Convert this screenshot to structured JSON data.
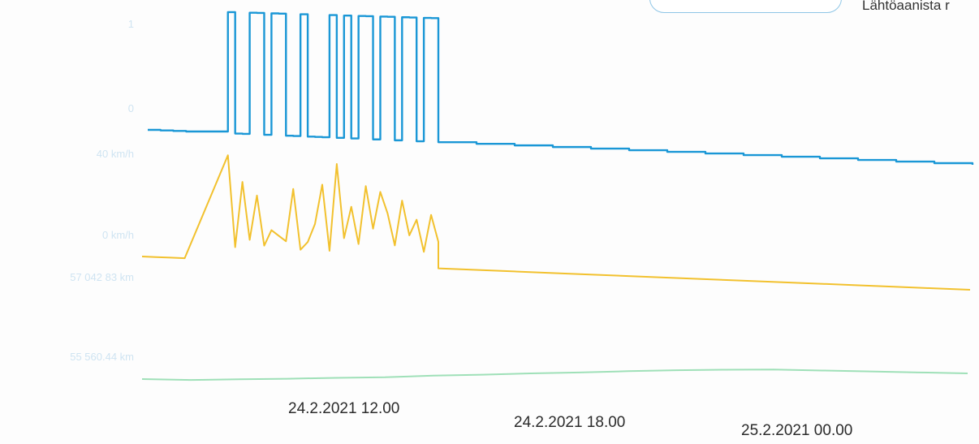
{
  "legend": {
    "text": "Lähtöaanista r"
  },
  "chart_data": {
    "type": "line",
    "x_tick_labels": [
      "24.2.2021 12.00",
      "24.2.2021 18.00",
      "25.2.2021 00.00"
    ],
    "y_labels": {
      "series1_top": "1",
      "series1_bottom": "0",
      "series2_top": "40 km/h",
      "series2_bottom": "0 km/h",
      "series3_top": "57 042 83 km",
      "series3_bottom": "55 560.44 km"
    },
    "series": [
      {
        "key": "binary",
        "color": "#1a97d6",
        "values": [
          0,
          0,
          0,
          0,
          1,
          0,
          0,
          1,
          1,
          0,
          1,
          1,
          0,
          0,
          1,
          0,
          0,
          0,
          1,
          0,
          1,
          0,
          1,
          1,
          0,
          1,
          1,
          0,
          1,
          1,
          0,
          1,
          1,
          0,
          0,
          0,
          0,
          0,
          0,
          0,
          0,
          0,
          0,
          0,
          0,
          0,
          0,
          0,
          0
        ]
      },
      {
        "key": "speed",
        "color": "#f2c12e",
        "values": [
          0,
          0,
          0,
          0,
          40,
          5,
          30,
          8,
          25,
          6,
          12,
          10,
          8,
          28,
          5,
          8,
          15,
          30,
          5,
          38,
          10,
          22,
          8,
          30,
          14,
          28,
          20,
          8,
          25,
          12,
          18,
          6,
          20,
          10,
          0,
          0,
          0,
          0,
          0,
          0,
          0,
          0,
          0,
          0,
          0,
          0,
          0,
          0,
          0
        ]
      },
      {
        "key": "odometer",
        "color": "#9fe0b8",
        "values": [
          55560.44,
          55560.44,
          55560.9,
          55561.3,
          55561.8,
          55562.2,
          55562.9,
          55563.4,
          55564.0,
          55564.5,
          55565.1,
          55565.6,
          55566.0,
          55566.3,
          55566.3,
          55566.3,
          55566.3,
          55566.3
        ]
      }
    ]
  }
}
